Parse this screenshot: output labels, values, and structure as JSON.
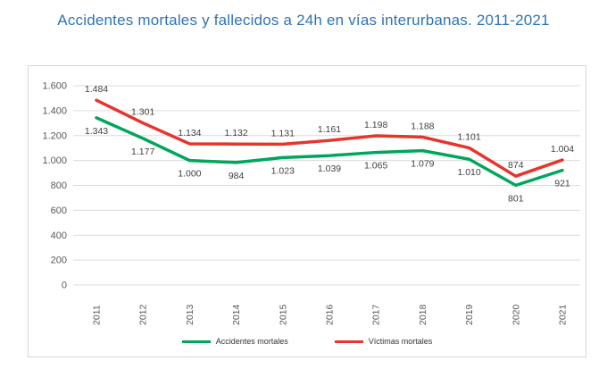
{
  "title": "Accidentes mortales y fallecidos a 24h en vías interurbanas. 2011-2021",
  "colors": {
    "title": "#2e74b5",
    "accidentes": "#00a65c",
    "victimas": "#e5352c",
    "grid": "#dcdcdc",
    "axis_text": "#595959",
    "label_text": "#404040",
    "chart_border": "#d6d6d6",
    "legend_text": "#333333"
  },
  "chart_data": {
    "type": "line",
    "title": "Accidentes mortales y fallecidos a 24h en vías interurbanas. 2011-2021",
    "categories": [
      "2011",
      "2012",
      "2013",
      "2014",
      "2015",
      "2016",
      "2017",
      "2018",
      "2019",
      "2020",
      "2021"
    ],
    "series": [
      {
        "name": "Accidentes mortales",
        "color_key": "accidentes",
        "values": [
          1343,
          1177,
          1000,
          984,
          1023,
          1039,
          1065,
          1079,
          1010,
          801,
          921
        ],
        "labels": [
          "1.343",
          "1.177",
          "1.000",
          "984",
          "1.023",
          "1.039",
          "1.065",
          "1.079",
          "1.010",
          "801",
          "921"
        ],
        "label_side": "below"
      },
      {
        "name": "Víctimas mortales",
        "color_key": "victimas",
        "values": [
          1484,
          1301,
          1134,
          1132,
          1131,
          1161,
          1198,
          1188,
          1101,
          874,
          1004
        ],
        "labels": [
          "1.484",
          "1.301",
          "1.134",
          "1.132",
          "1.131",
          "1.161",
          "1.198",
          "1.188",
          "1.101",
          "874",
          "1.004"
        ],
        "label_side": "above"
      }
    ],
    "xlabel": "",
    "ylabel": "",
    "ylim": [
      0,
      1600
    ],
    "ytick_step": 200,
    "ytick_labels": [
      "0",
      "200",
      "400",
      "600",
      "800",
      "1.000",
      "1.200",
      "1.400",
      "1.600"
    ],
    "grid": true,
    "x_tick_rotation": -90,
    "legend_position": "bottom"
  }
}
